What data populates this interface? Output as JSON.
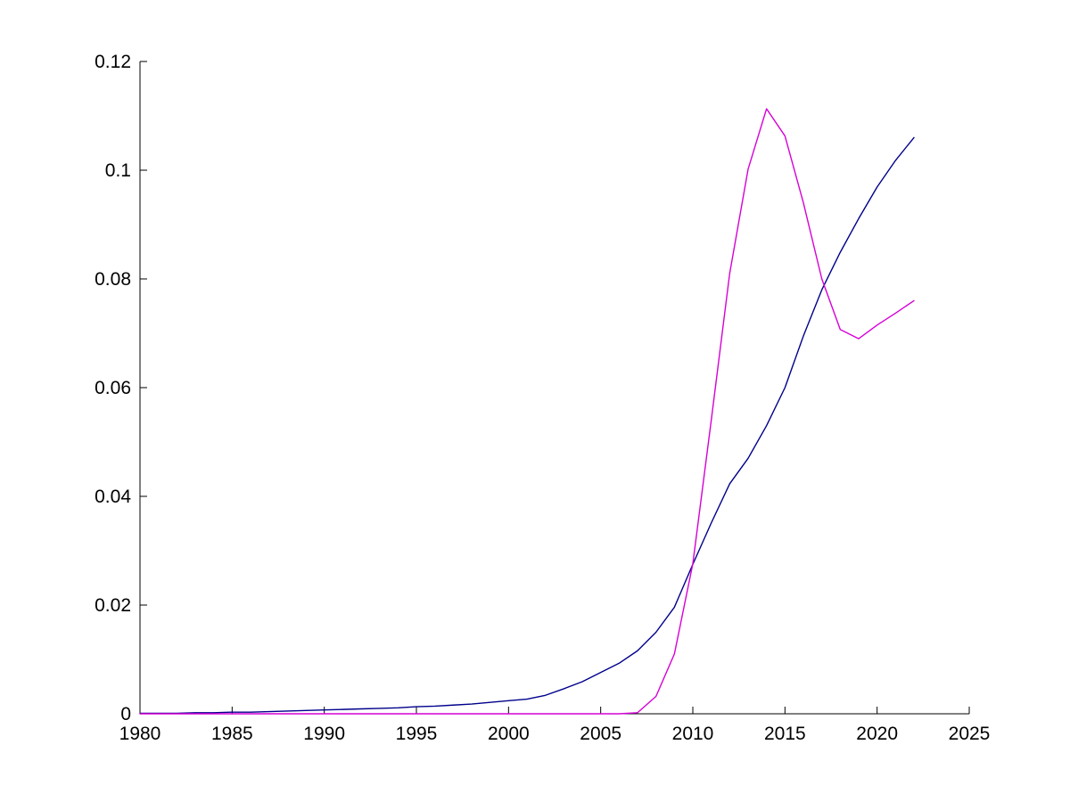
{
  "figure": {
    "background": "#ffffff",
    "title": ""
  },
  "chart_data": {
    "type": "line",
    "title": "",
    "xlabel": "",
    "ylabel": "",
    "grid": false,
    "legend": "none",
    "box": "off",
    "axis_color": "#000000",
    "background": "#ffffff",
    "xlim": [
      1980,
      2025
    ],
    "ylim": [
      0,
      0.12
    ],
    "x_ticks": [
      1980,
      1985,
      1990,
      1995,
      2000,
      2005,
      2010,
      2015,
      2020,
      2025
    ],
    "x_tick_labels": [
      "1980",
      "1985",
      "1990",
      "1995",
      "2000",
      "2005",
      "2010",
      "2015",
      "2020",
      "2025"
    ],
    "y_ticks": [
      0,
      0.02,
      0.04,
      0.06,
      0.08,
      0.1,
      0.12
    ],
    "y_tick_labels": [
      "0",
      "0.02",
      "0.04",
      "0.06",
      "0.08",
      "0.1",
      "0.12"
    ],
    "x": [
      1980,
      1981,
      1982,
      1983,
      1984,
      1985,
      1986,
      1987,
      1988,
      1989,
      1990,
      1991,
      1992,
      1993,
      1994,
      1995,
      1996,
      1997,
      1998,
      1999,
      2000,
      2001,
      2002,
      2003,
      2004,
      2005,
      2006,
      2007,
      2008,
      2009,
      2010,
      2011,
      2012,
      2013,
      2014,
      2015,
      2016,
      2017,
      2018,
      2019,
      2020,
      2021,
      2022
    ],
    "series": [
      {
        "name": "smooth-dark-blue-curve",
        "color": "#00008B",
        "values": [
          0.0001,
          0.0001,
          0.0001,
          0.0002,
          0.0002,
          0.0003,
          0.0003,
          0.0004,
          0.0005,
          0.0006,
          0.0007,
          0.0008,
          0.0009,
          0.001,
          0.0011,
          0.0013,
          0.0014,
          0.0016,
          0.0018,
          0.0021,
          0.0024,
          0.0027,
          0.0034,
          0.0046,
          0.0059,
          0.0076,
          0.0093,
          0.0116,
          0.015,
          0.0196,
          0.0275,
          0.0351,
          0.0423,
          0.047,
          0.053,
          0.06,
          0.0695,
          0.078,
          0.0849,
          0.0911,
          0.0969,
          0.1018,
          0.106
        ]
      },
      {
        "name": "magenta-spike-curve",
        "color": "#D600D6",
        "values": [
          0,
          0,
          0,
          0,
          0,
          0,
          0,
          0,
          0,
          0,
          0,
          0,
          0,
          0,
          0,
          0,
          0,
          0,
          0,
          0,
          0,
          0,
          0,
          0,
          0,
          0,
          0,
          0.0002,
          0.0032,
          0.011,
          0.0276,
          0.054,
          0.081,
          0.1002,
          0.1113,
          0.1063,
          0.094,
          0.08,
          0.0707,
          0.069,
          0.0715,
          0.0737,
          0.076
        ]
      }
    ]
  }
}
